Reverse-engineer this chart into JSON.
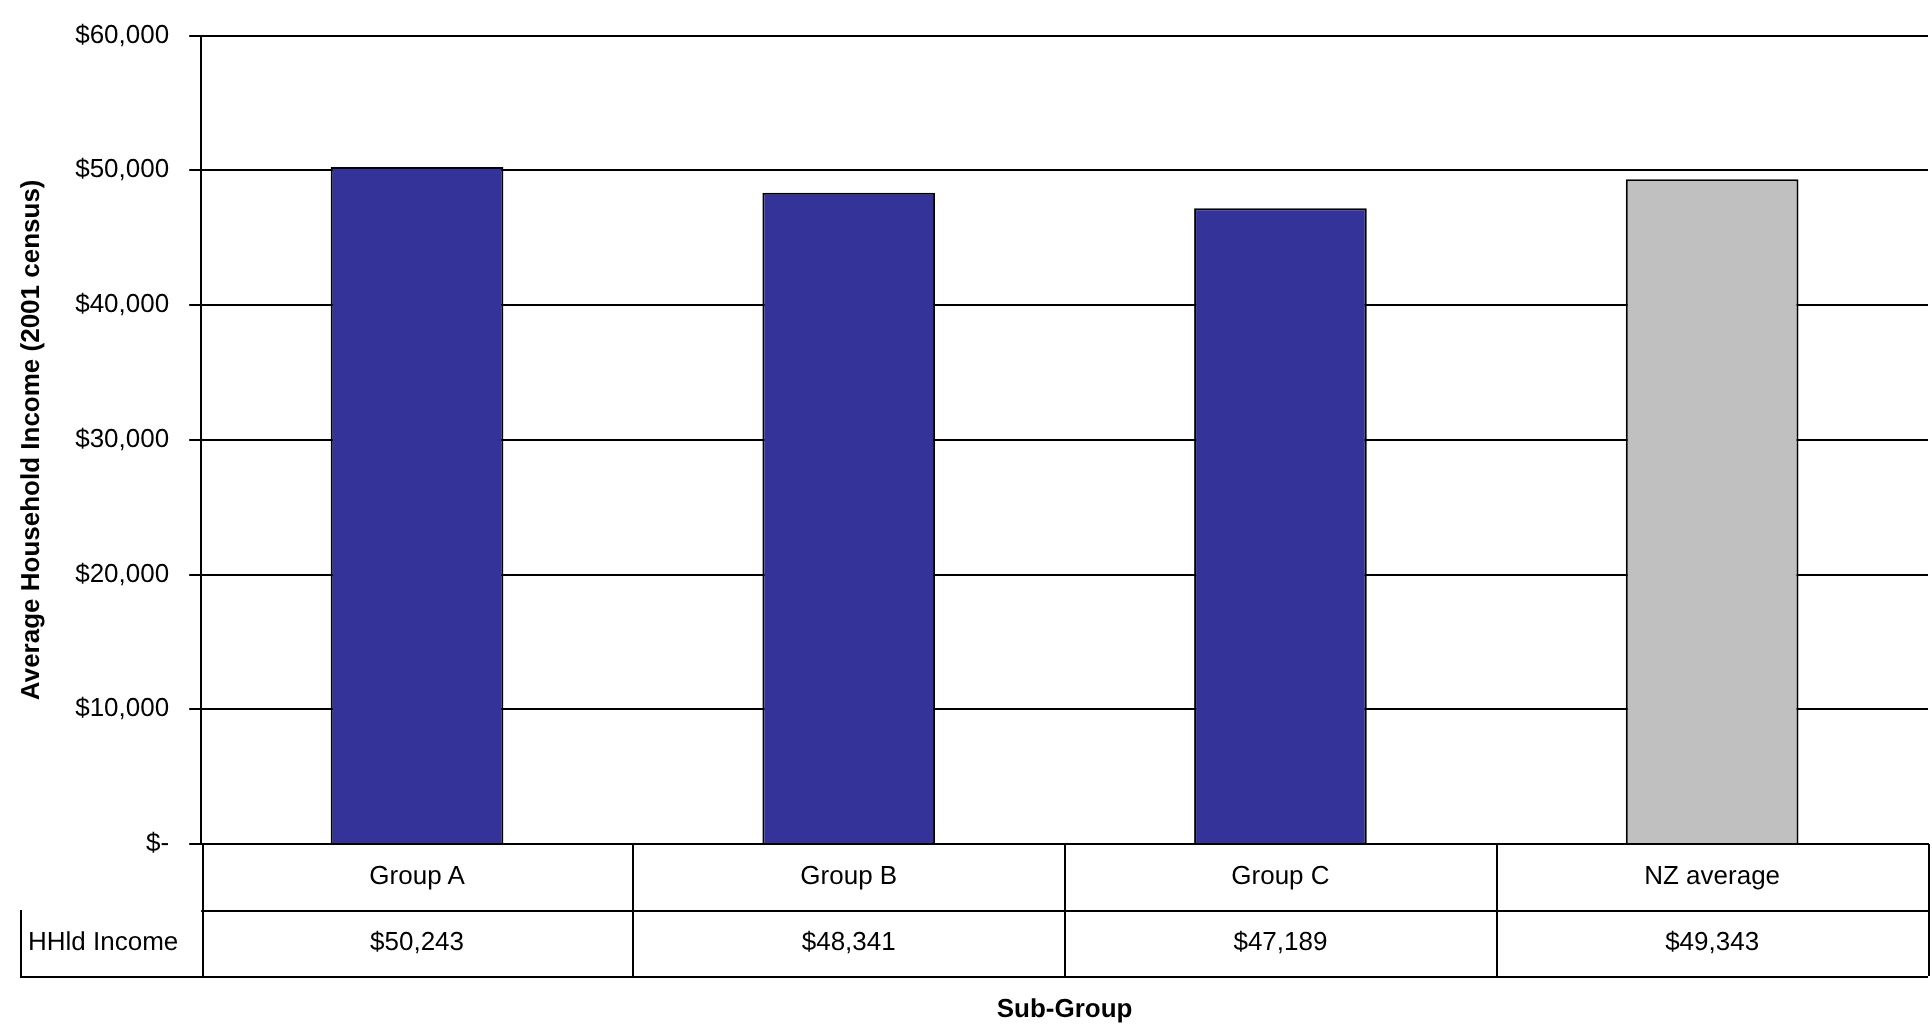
{
  "chart_data": {
    "type": "bar",
    "xlabel": "Sub-Group",
    "ylabel": "Average Household Income (2001 census)",
    "categories": [
      "Group A",
      "Group B",
      "Group C",
      "NZ average"
    ],
    "series": [
      {
        "name": "HHld Income",
        "values": [
          50243,
          48341,
          47189,
          49343
        ],
        "colors": [
          "#333399",
          "#333399",
          "#333399",
          "#c0c0c0"
        ],
        "value_labels": [
          "$50,243",
          "$48,341",
          "$47,189",
          "$49,343"
        ]
      }
    ],
    "ylim": [
      0,
      60000
    ],
    "yticks": [
      {
        "value": 0,
        "label": "$-"
      },
      {
        "value": 10000,
        "label": "$10,000"
      },
      {
        "value": 20000,
        "label": "$20,000"
      },
      {
        "value": 30000,
        "label": "$30,000"
      },
      {
        "value": 40000,
        "label": "$40,000"
      },
      {
        "value": 50000,
        "label": "$50,000"
      },
      {
        "value": 60000,
        "label": "$60,000"
      }
    ],
    "grid": "y",
    "legend": false
  }
}
